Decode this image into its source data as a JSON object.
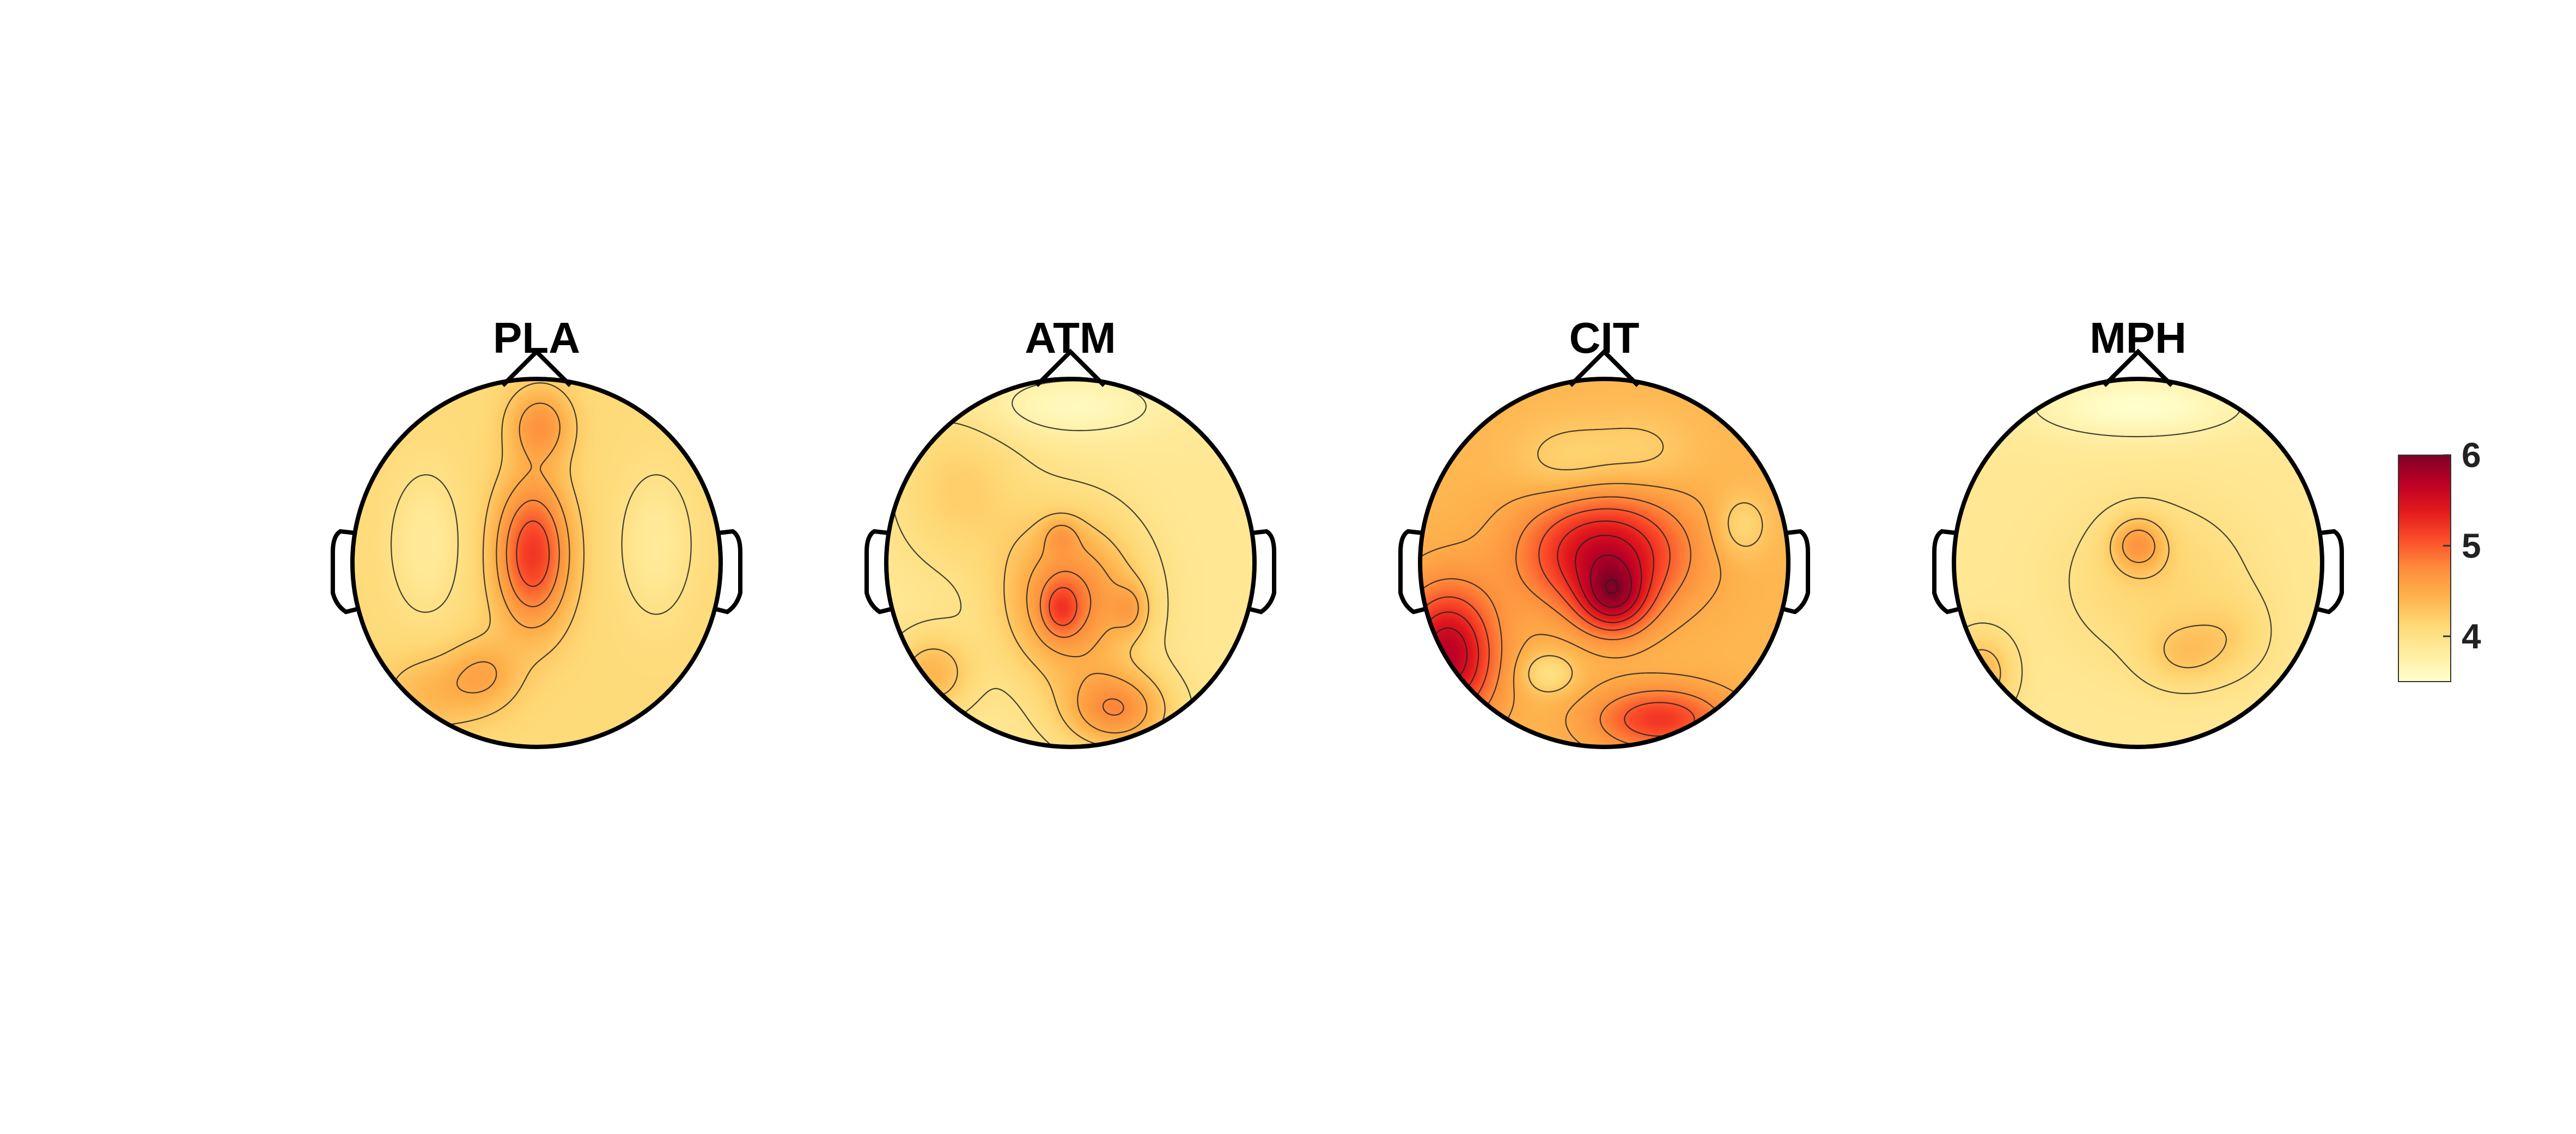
{
  "chart_data": {
    "type": "heatmap",
    "subtype": "scalp-topography",
    "colormap": [
      "#ffffcc",
      "#ffeda0",
      "#fed976",
      "#feb24c",
      "#fd8d3c",
      "#fc4e2a",
      "#e31a1c",
      "#bd0026",
      "#800026"
    ],
    "contour_lines": true,
    "grid": false,
    "colorbar": {
      "placement": "right",
      "range": [
        3.5,
        6.0
      ],
      "ticks": [
        4,
        5,
        6
      ],
      "tick_labels": [
        "4",
        "5",
        "6"
      ]
    },
    "maps": [
      {
        "title": "PLA",
        "base_value": 4.1,
        "hotspots": [
          {
            "x": -0.02,
            "y": 0.05,
            "sx": 0.14,
            "sy": 0.28,
            "amp": 1.1
          },
          {
            "x": 0.02,
            "y": 0.75,
            "sx": 0.12,
            "sy": 0.14,
            "amp": 0.55
          },
          {
            "x": -0.28,
            "y": -0.6,
            "sx": 0.13,
            "sy": 0.13,
            "amp": 0.35
          },
          {
            "x": -0.55,
            "y": -0.7,
            "sx": 0.2,
            "sy": 0.15,
            "amp": 0.3
          },
          {
            "x": -0.6,
            "y": 0.1,
            "sx": 0.14,
            "sy": 0.28,
            "amp": -0.25
          },
          {
            "x": 0.65,
            "y": 0.1,
            "sx": 0.14,
            "sy": 0.28,
            "amp": -0.25
          }
        ]
      },
      {
        "title": "ATM",
        "base_value": 3.9,
        "hotspots": [
          {
            "x": 0.0,
            "y": -0.2,
            "sx": 0.25,
            "sy": 0.3,
            "amp": 0.9
          },
          {
            "x": -0.05,
            "y": -0.25,
            "sx": 0.07,
            "sy": 0.1,
            "amp": 0.45
          },
          {
            "x": 0.33,
            "y": -0.25,
            "sx": 0.07,
            "sy": 0.1,
            "amp": 0.35
          },
          {
            "x": -0.05,
            "y": 0.15,
            "sx": 0.07,
            "sy": 0.07,
            "amp": 0.3
          },
          {
            "x": 0.25,
            "y": -0.8,
            "sx": 0.2,
            "sy": 0.15,
            "amp": 0.8
          },
          {
            "x": -0.75,
            "y": -0.6,
            "sx": 0.15,
            "sy": 0.15,
            "amp": 0.5
          },
          {
            "x": -0.6,
            "y": 0.4,
            "sx": 0.25,
            "sy": 0.3,
            "amp": 0.3
          },
          {
            "x": 0.0,
            "y": 0.85,
            "sx": 0.35,
            "sy": 0.12,
            "amp": -0.3
          }
        ]
      },
      {
        "title": "CIT",
        "base_value": 4.4,
        "hotspots": [
          {
            "x": 0.0,
            "y": 0.05,
            "sx": 0.3,
            "sy": 0.22,
            "amp": 1.2
          },
          {
            "x": 0.05,
            "y": -0.2,
            "sx": 0.13,
            "sy": 0.13,
            "amp": 0.9
          },
          {
            "x": -0.85,
            "y": -0.5,
            "sx": 0.18,
            "sy": 0.25,
            "amp": 1.3
          },
          {
            "x": 0.3,
            "y": -0.85,
            "sx": 0.25,
            "sy": 0.12,
            "amp": 0.8
          },
          {
            "x": -0.3,
            "y": -0.6,
            "sx": 0.1,
            "sy": 0.08,
            "amp": -0.4
          },
          {
            "x": 0.75,
            "y": 0.2,
            "sx": 0.1,
            "sy": 0.12,
            "amp": -0.3
          },
          {
            "x": -0.2,
            "y": 0.55,
            "sx": 0.2,
            "sy": 0.15,
            "amp": -0.25
          },
          {
            "x": 0.2,
            "y": 0.6,
            "sx": 0.2,
            "sy": 0.15,
            "amp": -0.2
          }
        ]
      },
      {
        "title": "MPH",
        "base_value": 3.9,
        "hotspots": [
          {
            "x": 0.0,
            "y": 0.1,
            "sx": 0.1,
            "sy": 0.1,
            "amp": 0.6
          },
          {
            "x": 0.1,
            "y": -0.1,
            "sx": 0.35,
            "sy": 0.3,
            "amp": 0.25
          },
          {
            "x": -0.85,
            "y": -0.6,
            "sx": 0.12,
            "sy": 0.15,
            "amp": 0.5
          },
          {
            "x": 0.25,
            "y": -0.5,
            "sx": 0.15,
            "sy": 0.12,
            "amp": 0.3
          },
          {
            "x": 0.5,
            "y": -0.4,
            "sx": 0.15,
            "sy": 0.15,
            "amp": 0.2
          },
          {
            "x": 0.0,
            "y": 0.85,
            "sx": 0.4,
            "sy": 0.12,
            "amp": -0.4
          }
        ]
      }
    ]
  }
}
